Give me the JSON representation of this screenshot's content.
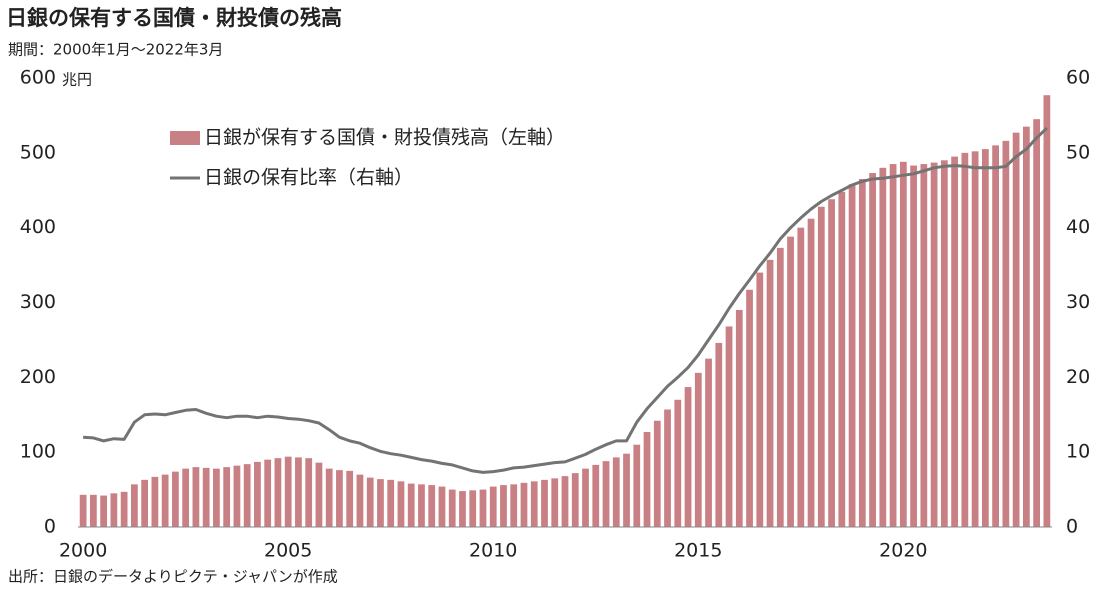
{
  "chart_data": {
    "type": "bar-line",
    "title": "日銀の保有する国債・財投債の残高",
    "subtitle": "期間：2000年1月〜2022年3月",
    "y_unit": "兆円",
    "source": "出所：日銀のデータよりピクテ・ジャパンが作成",
    "categories": [
      "2000",
      null,
      null,
      null,
      null,
      null,
      null,
      null,
      null,
      null,
      null,
      null,
      null,
      null,
      null,
      null,
      null,
      null,
      null,
      null,
      "2005",
      null,
      null,
      null,
      null,
      null,
      null,
      null,
      null,
      null,
      null,
      null,
      null,
      null,
      null,
      null,
      null,
      null,
      null,
      null,
      "2010",
      null,
      null,
      null,
      null,
      null,
      null,
      null,
      null,
      null,
      null,
      null,
      null,
      null,
      null,
      null,
      null,
      null,
      null,
      null,
      "2015",
      null,
      null,
      null,
      null,
      null,
      null,
      null,
      null,
      null,
      null,
      null,
      null,
      null,
      null,
      null,
      null,
      null,
      null,
      null,
      "2020",
      null,
      null,
      null,
      null,
      null,
      null,
      null,
      null,
      null,
      null,
      null,
      null,
      null,
      null
    ],
    "series": [
      {
        "name": "日銀が保有する国債・財投債残高（左軸）",
        "type": "bar",
        "color": "#c98085",
        "values": [
          43,
          43,
          42,
          45,
          47,
          57,
          63,
          67,
          70,
          74,
          78,
          80,
          79,
          78,
          80,
          82,
          84,
          87,
          90,
          92,
          94,
          93,
          92,
          86,
          78,
          76,
          75,
          70,
          66,
          64,
          63,
          61,
          58,
          57,
          56,
          54,
          50,
          48,
          49,
          50,
          54,
          56,
          57,
          59,
          61,
          63,
          65,
          68,
          72,
          78,
          83,
          88,
          93,
          98,
          110,
          127,
          142,
          157,
          170,
          187,
          206,
          225,
          246,
          268,
          290,
          317,
          340,
          357,
          373,
          388,
          400,
          412,
          428,
          438,
          448,
          458,
          465,
          473,
          480,
          485,
          488,
          483,
          485,
          487,
          490,
          495,
          500,
          502,
          505,
          510,
          516,
          527,
          535,
          545,
          577
        ]
      },
      {
        "name": "日銀の保有比率（右軸）",
        "type": "line",
        "axis": "y2",
        "color": "#737373",
        "values": [
          12,
          11.9,
          11.5,
          11.8,
          11.7,
          14,
          15,
          15.1,
          15,
          15.3,
          15.6,
          15.7,
          15.2,
          14.8,
          14.6,
          14.8,
          14.8,
          14.6,
          14.8,
          14.7,
          14.5,
          14.4,
          14.2,
          13.9,
          13,
          12,
          11.5,
          11.2,
          10.6,
          10.1,
          9.8,
          9.6,
          9.3,
          9,
          8.8,
          8.5,
          8.3,
          7.9,
          7.5,
          7.3,
          7.4,
          7.6,
          7.9,
          8,
          8.2,
          8.4,
          8.6,
          8.7,
          9.2,
          9.7,
          10.4,
          11,
          11.5,
          11.5,
          14,
          15.8,
          17.3,
          18.8,
          20,
          21.3,
          23,
          25,
          27,
          29.2,
          31.2,
          33,
          34.9,
          36.6,
          38.5,
          40,
          41.3,
          42.5,
          43.5,
          44.3,
          45,
          45.7,
          46.2,
          46.5,
          46.6,
          46.8,
          47,
          47.2,
          47.6,
          48,
          48.2,
          48.3,
          48.2,
          48,
          48,
          48,
          48.2,
          49.5,
          50.5,
          52,
          53.3
        ]
      }
    ],
    "ylim": [
      0,
      600
    ],
    "yticks": [
      0,
      100,
      200,
      300,
      400,
      500,
      600
    ],
    "y2lim": [
      0,
      60
    ],
    "y2ticks": [
      0,
      10,
      20,
      30,
      40,
      50,
      60
    ]
  }
}
